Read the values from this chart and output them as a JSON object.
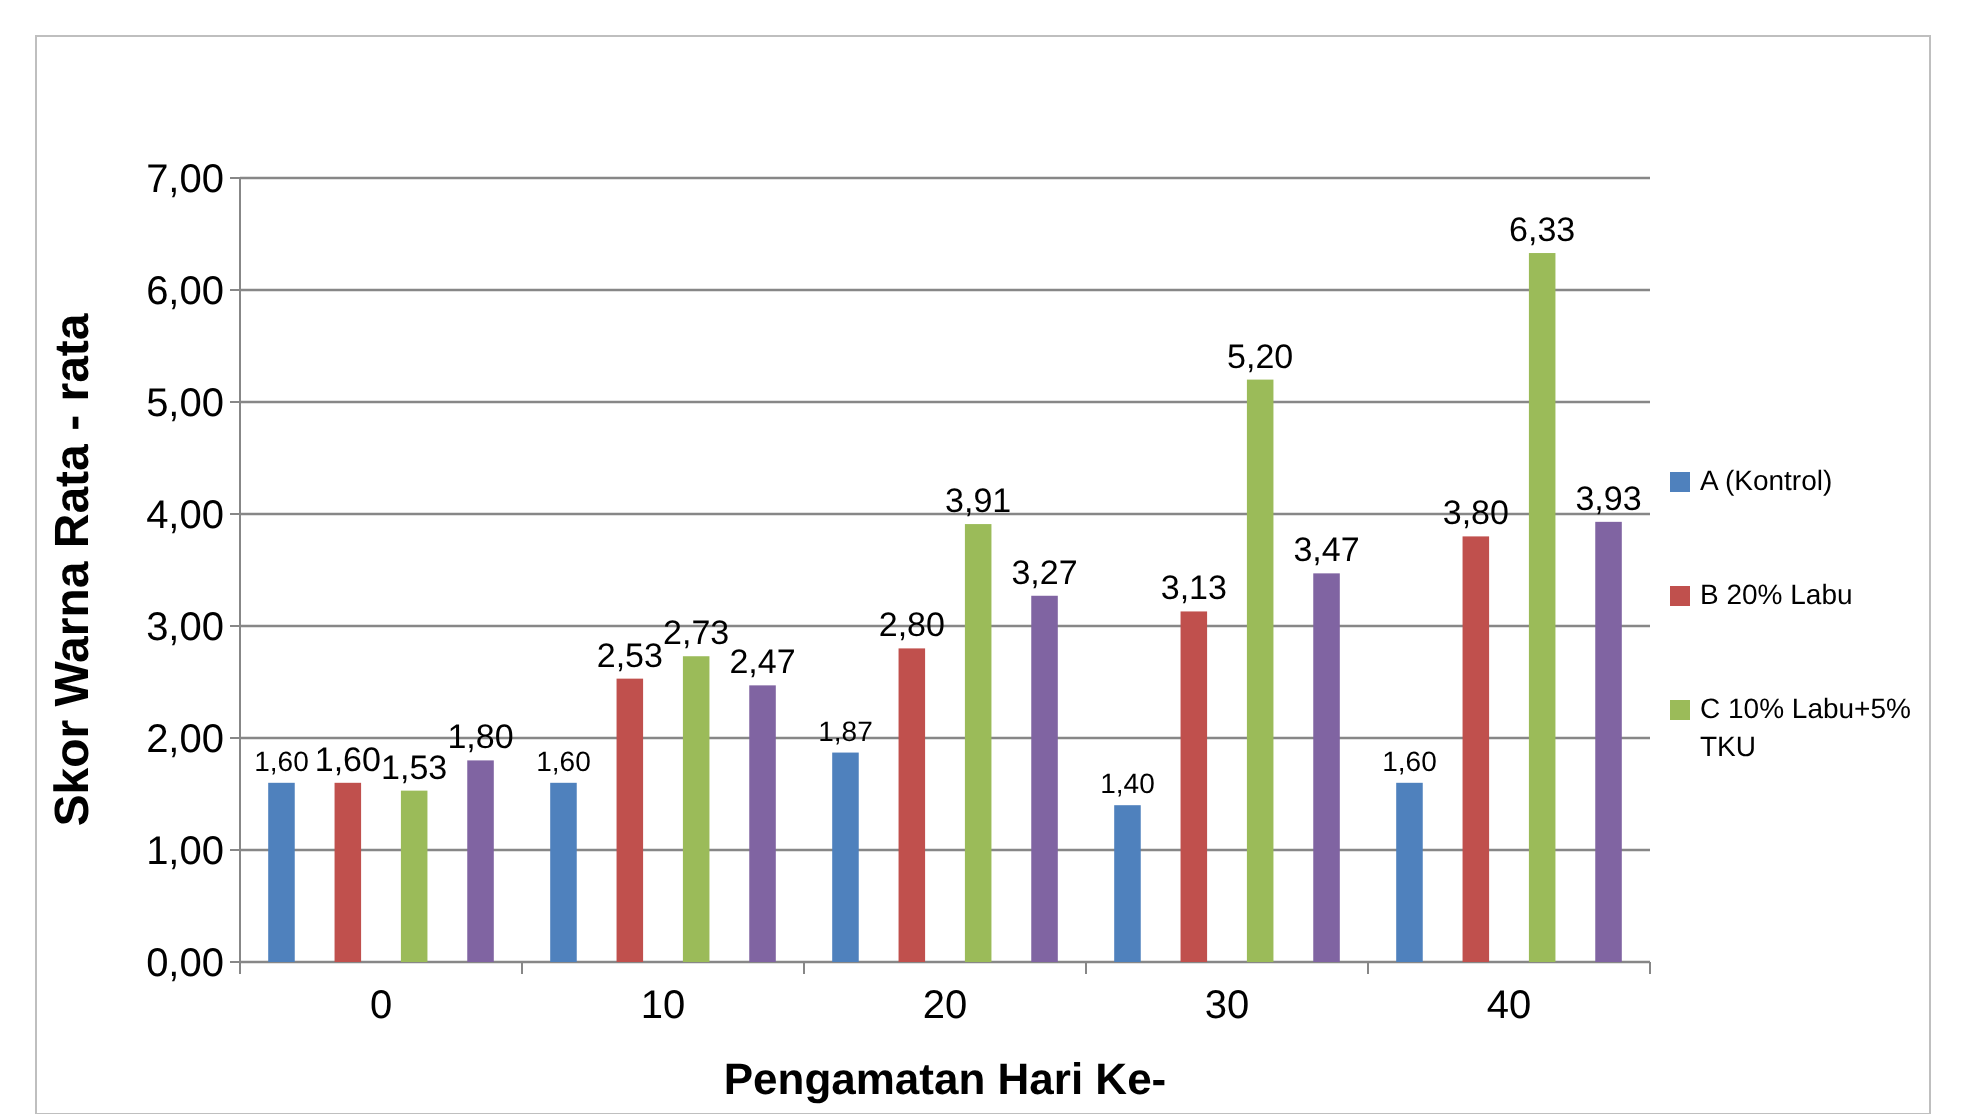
{
  "chart_data": {
    "type": "bar",
    "xlabel": "Pengamatan Hari Ke-",
    "ylabel": "Skor  Warna  Rata - rata",
    "categories": [
      "0",
      "10",
      "20",
      "30",
      "40"
    ],
    "ylim": [
      0,
      7
    ],
    "yticks": [
      {
        "value": 0,
        "label": "0,00"
      },
      {
        "value": 1,
        "label": "1,00"
      },
      {
        "value": 2,
        "label": "2,00"
      },
      {
        "value": 3,
        "label": "3,00"
      },
      {
        "value": 4,
        "label": "4,00"
      },
      {
        "value": 5,
        "label": "5,00"
      },
      {
        "value": 6,
        "label": "6,00"
      },
      {
        "value": 7,
        "label": "7,00"
      }
    ],
    "grid": "y",
    "legend": "right",
    "series": [
      {
        "name": "A (Kontrol)",
        "color": "#4f81bd",
        "values": [
          1.6,
          1.6,
          1.87,
          1.4,
          1.6
        ],
        "value_labels": [
          "1,60",
          "1,60",
          "1,87",
          "1,40",
          "1,60"
        ]
      },
      {
        "name": "B 20% Labu",
        "color": "#c0504d",
        "values": [
          1.6,
          2.53,
          2.8,
          3.13,
          3.8
        ],
        "value_labels": [
          "1,60",
          "2,53",
          "2,80",
          "3,13",
          "3,80"
        ]
      },
      {
        "name": "C 10% Labu+5% TKU",
        "color": "#9bbb59",
        "values": [
          1.53,
          2.73,
          3.91,
          5.2,
          6.33
        ],
        "value_labels": [
          "1,53",
          "2,73",
          "3,91",
          "5,20",
          "6,33"
        ]
      },
      {
        "color": "#8064a2",
        "values": [
          1.8,
          2.47,
          3.27,
          3.47,
          3.93
        ],
        "value_labels": [
          "1,80",
          "2,47",
          "3,27",
          "3,47",
          "3,93"
        ]
      }
    ]
  }
}
